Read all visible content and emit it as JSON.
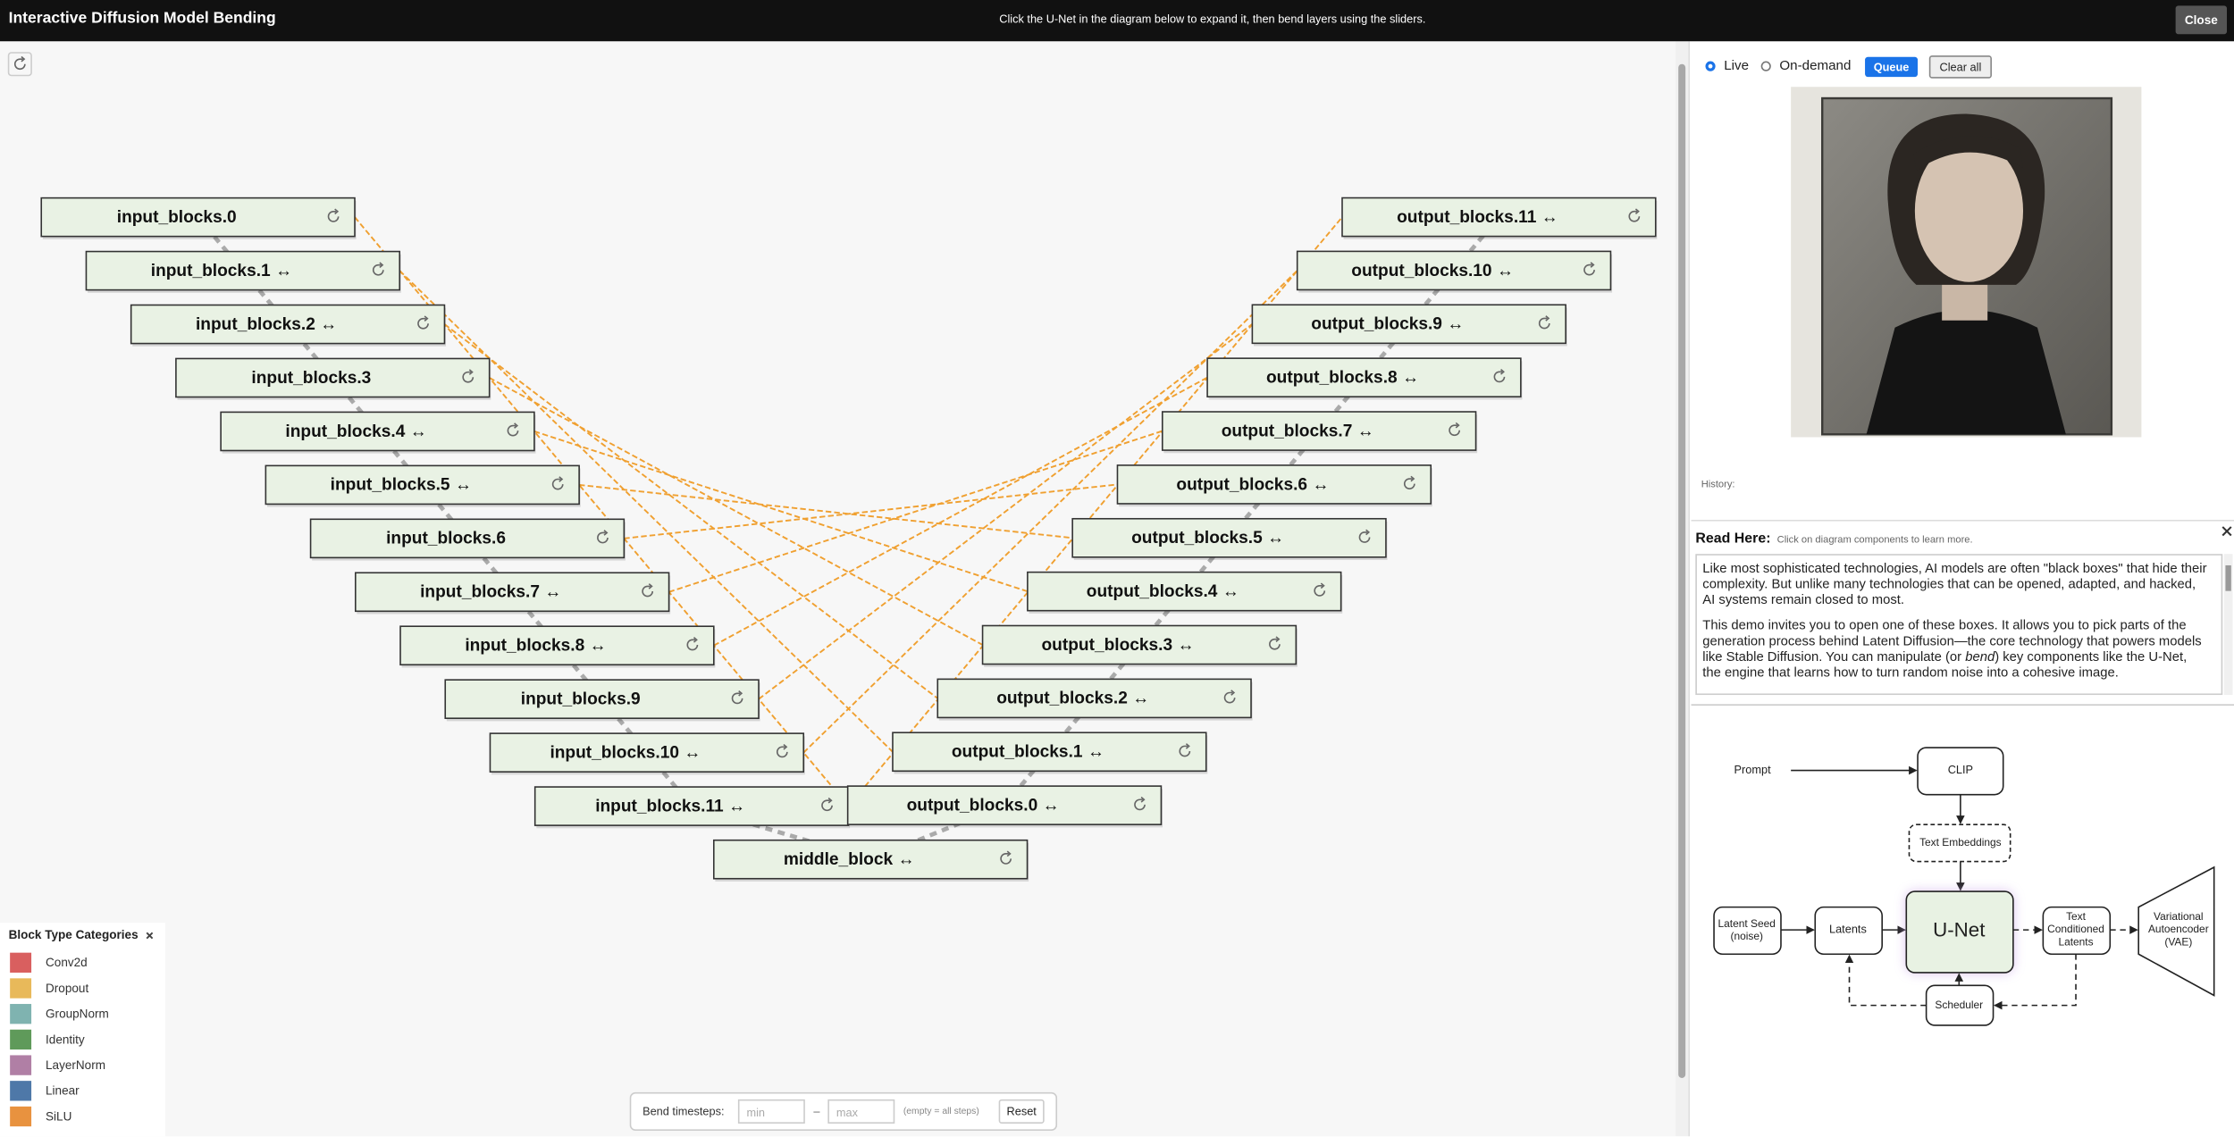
{
  "header": {
    "title": "Interactive Diffusion Model Bending",
    "instruction": "Click the U-Net in the diagram below to expand it, then bend layers using the sliders.",
    "close": "Close"
  },
  "unet": {
    "input_blocks": [
      "input_blocks.0",
      "input_blocks.1 ↔",
      "input_blocks.2 ↔",
      "input_blocks.3",
      "input_blocks.4 ↔",
      "input_blocks.5 ↔",
      "input_blocks.6",
      "input_blocks.7 ↔",
      "input_blocks.8 ↔",
      "input_blocks.9",
      "input_blocks.10 ↔",
      "input_blocks.11 ↔"
    ],
    "middle_block": "middle_block ↔",
    "output_blocks": [
      "output_blocks.0 ↔",
      "output_blocks.1 ↔",
      "output_blocks.2 ↔",
      "output_blocks.3 ↔",
      "output_blocks.4 ↔",
      "output_blocks.5 ↔",
      "output_blocks.6 ↔",
      "output_blocks.7 ↔",
      "output_blocks.8 ↔",
      "output_blocks.9 ↔",
      "output_blocks.10 ↔",
      "output_blocks.11 ↔"
    ]
  },
  "legend": {
    "title": "Block Type Categories",
    "items": [
      {
        "name": "Conv2d",
        "color": "#d95f5f"
      },
      {
        "name": "Dropout",
        "color": "#e8b95a"
      },
      {
        "name": "GroupNorm",
        "color": "#7fb3b0"
      },
      {
        "name": "Identity",
        "color": "#5f9a5a"
      },
      {
        "name": "LayerNorm",
        "color": "#b07fa5"
      },
      {
        "name": "Linear",
        "color": "#4e78a8"
      },
      {
        "name": "SiLU",
        "color": "#e8923f"
      }
    ]
  },
  "timesteps": {
    "label": "Bend timesteps:",
    "min": "min",
    "separator": "–",
    "max": "max",
    "hint": "(empty = all steps)",
    "reset": "Reset"
  },
  "controls": {
    "live": "Live",
    "on_demand": "On-demand",
    "queue": "Queue",
    "clear_all": "Clear all"
  },
  "history": "History:",
  "read_here": {
    "title": "Read Here:",
    "hint": "Click on diagram components to learn more.",
    "paragraphs": [
      "Like most sophisticated technologies, AI models are often \"black boxes\" that hide their complexity. But unlike many technologies that can be opened, adapted, and hacked, AI systems remain closed to most.",
      [
        "This demo invites you to open one of these boxes. It allows you to pick parts of the generation process behind Latent Diffusion—the core technology that powers models like Stable Diffusion. You can manipulate (or ",
        "bend",
        ") key components like the U-Net, the engine that learns how to turn random noise into a cohesive image."
      ]
    ]
  },
  "pipeline": {
    "prompt": "Prompt",
    "clip": "CLIP",
    "text_embeddings": "Text Embeddings",
    "latent_seed": [
      "Latent Seed",
      "(noise)"
    ],
    "latents": "Latents",
    "unet": "U-Net",
    "text_conditioned_latents": [
      "Text",
      "Conditioned",
      "Latents"
    ],
    "vae": [
      "Variational",
      "Autoencoder",
      "(VAE)"
    ],
    "scheduler": "Scheduler"
  }
}
